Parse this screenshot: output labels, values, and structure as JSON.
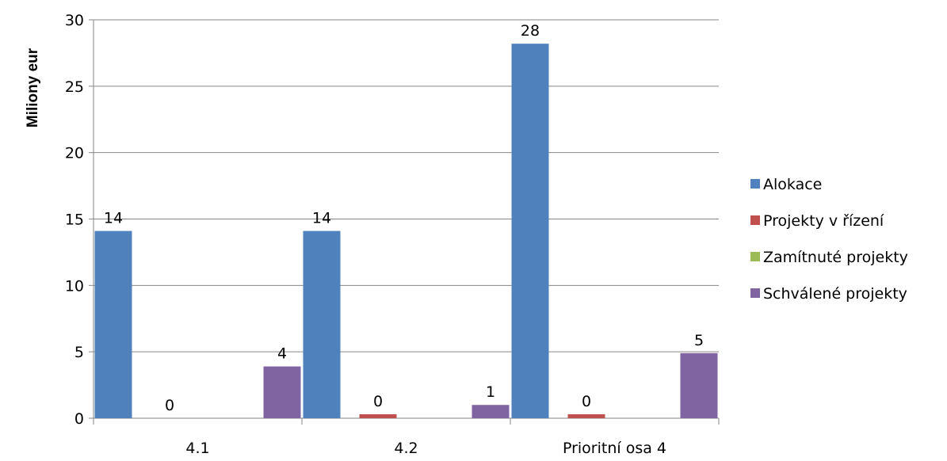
{
  "chart_data": {
    "type": "bar",
    "title": "",
    "xlabel": "",
    "ylabel": "Miliony eur",
    "ylim": [
      0,
      30
    ],
    "yticks": [
      0,
      5,
      10,
      15,
      20,
      25,
      30
    ],
    "grid": true,
    "legend_position": "right",
    "categories": [
      "4.1",
      "4.2",
      "Prioritní osa 4"
    ],
    "series": [
      {
        "name": "Alokace",
        "color": "#4F81BD",
        "values": [
          14.1,
          14.1,
          28.2
        ],
        "labels": [
          "14",
          "14",
          "28"
        ]
      },
      {
        "name": "Projekty v řízení",
        "color": "#C0504D",
        "values": [
          0,
          0.3,
          0.3
        ],
        "labels": [
          "0",
          "0",
          "0"
        ]
      },
      {
        "name": "Zamítnuté projekty",
        "color": "#9BBB59",
        "values": [
          0,
          0,
          0
        ],
        "labels": [
          "",
          "",
          ""
        ]
      },
      {
        "name": "Schválené projekty",
        "color": "#8064A2",
        "values": [
          3.9,
          1.0,
          4.9
        ],
        "labels": [
          "4",
          "1",
          "5"
        ]
      }
    ]
  }
}
